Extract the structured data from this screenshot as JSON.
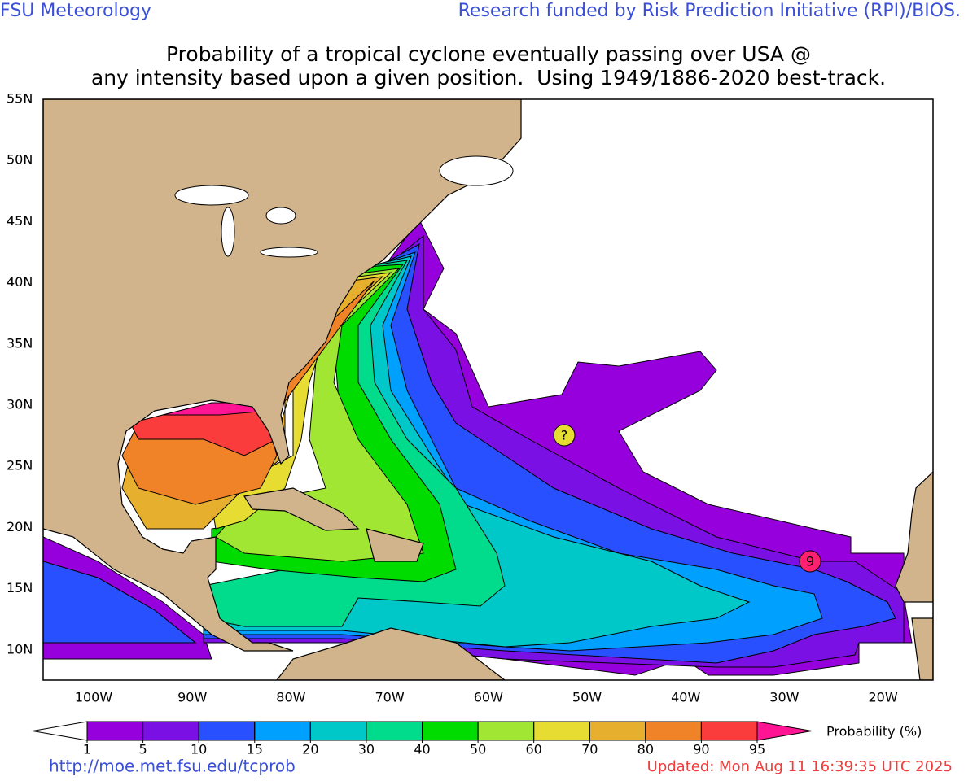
{
  "header": {
    "left": "FSU Meteorology",
    "right": "Research funded by Risk Prediction Initiative (RPI)/BIOS."
  },
  "title": [
    "Probability of a tropical cyclone eventually passing over USA @",
    "any intensity based upon a given position.  Using 1949/1886-2020 best-track."
  ],
  "map": {
    "lat_labels": [
      "55N",
      "50N",
      "45N",
      "40N",
      "35N",
      "30N",
      "25N",
      "20N",
      "15N",
      "10N"
    ],
    "lon_labels": [
      "100W",
      "90W",
      "80W",
      "70W",
      "60W",
      "50W",
      "40W",
      "30W",
      "20W"
    ],
    "markers": [
      {
        "label": "?"
      },
      {
        "label": "9"
      }
    ]
  },
  "colorbar": {
    "label": "Probability (%)",
    "ticks": [
      1,
      5,
      10,
      15,
      20,
      30,
      40,
      50,
      60,
      70,
      80,
      90,
      95
    ],
    "colors": [
      "#9600dc",
      "#7a10e4",
      "#2850ff",
      "#00a0ff",
      "#00c8c8",
      "#00dc8c",
      "#00dc00",
      "#a0e632",
      "#e6dc32",
      "#e6af2d",
      "#f08228",
      "#fa3c3c"
    ],
    "under": "#ffffff",
    "over": "#ff1493"
  },
  "footer": {
    "url": "http://moe.met.fsu.edu/tcprob",
    "updated": "Updated: Mon Aug 11 16:39:35 UTC 2025"
  }
}
